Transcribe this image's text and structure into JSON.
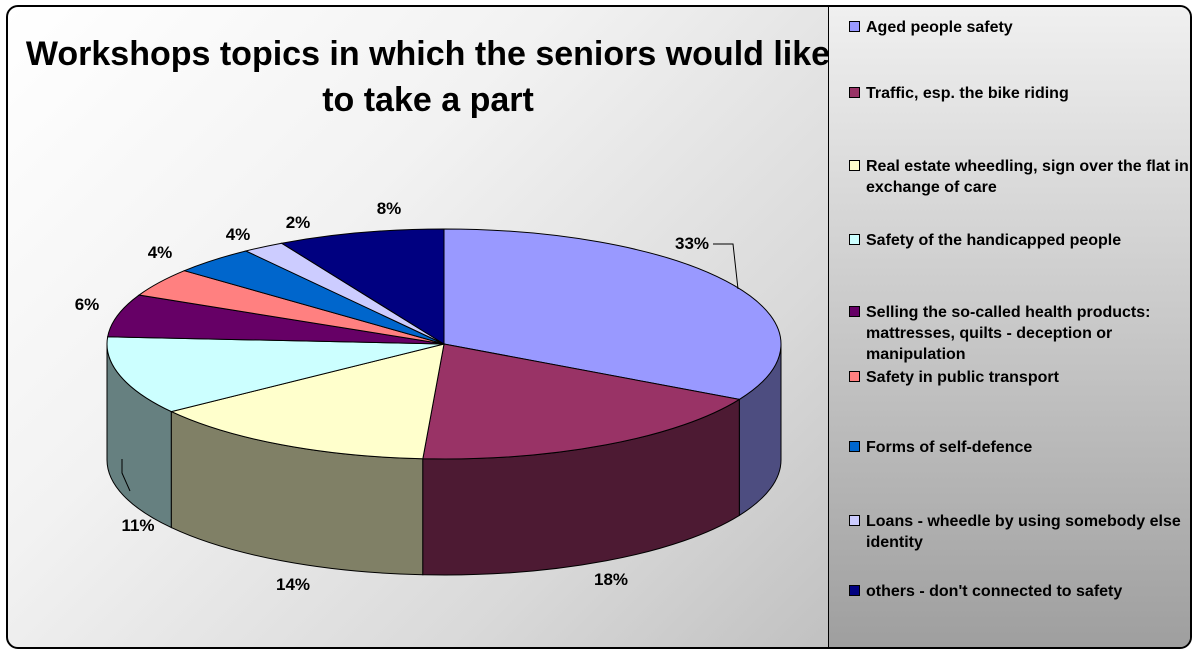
{
  "chart_data": {
    "type": "pie",
    "title": "Workshops topics in which the seniors would like to take a part",
    "three_d": true,
    "legend_position": "right",
    "data_labels": [
      "33%",
      "18%",
      "14%",
      "11%",
      "6%",
      "4%",
      "4%",
      "2%",
      "8%"
    ],
    "slices": [
      {
        "label": "Aged people safety",
        "value": 33,
        "color": "#9999ff"
      },
      {
        "label": "Traffic, esp. the bike riding",
        "value": 18,
        "color": "#993366"
      },
      {
        "label": "Real estate wheedling, sign over the flat in exchange of care",
        "value": 14,
        "color": "#ffffcc"
      },
      {
        "label": "Safety of the handicapped people",
        "value": 11,
        "color": "#ccffff"
      },
      {
        "label": "Selling the so-called health products: mattresses, quilts - deception or manipulation",
        "value": 6,
        "color": "#660066"
      },
      {
        "label": "Safety in public transport",
        "value": 4,
        "color": "#ff8080"
      },
      {
        "label": "Forms of self-defence",
        "value": 4,
        "color": "#0066cc"
      },
      {
        "label": "Loans - wheedle by using somebody else identity",
        "value": 2,
        "color": "#ccccff"
      },
      {
        "label": "others - don't connected to safety",
        "value": 8,
        "color": "#000080"
      }
    ]
  }
}
